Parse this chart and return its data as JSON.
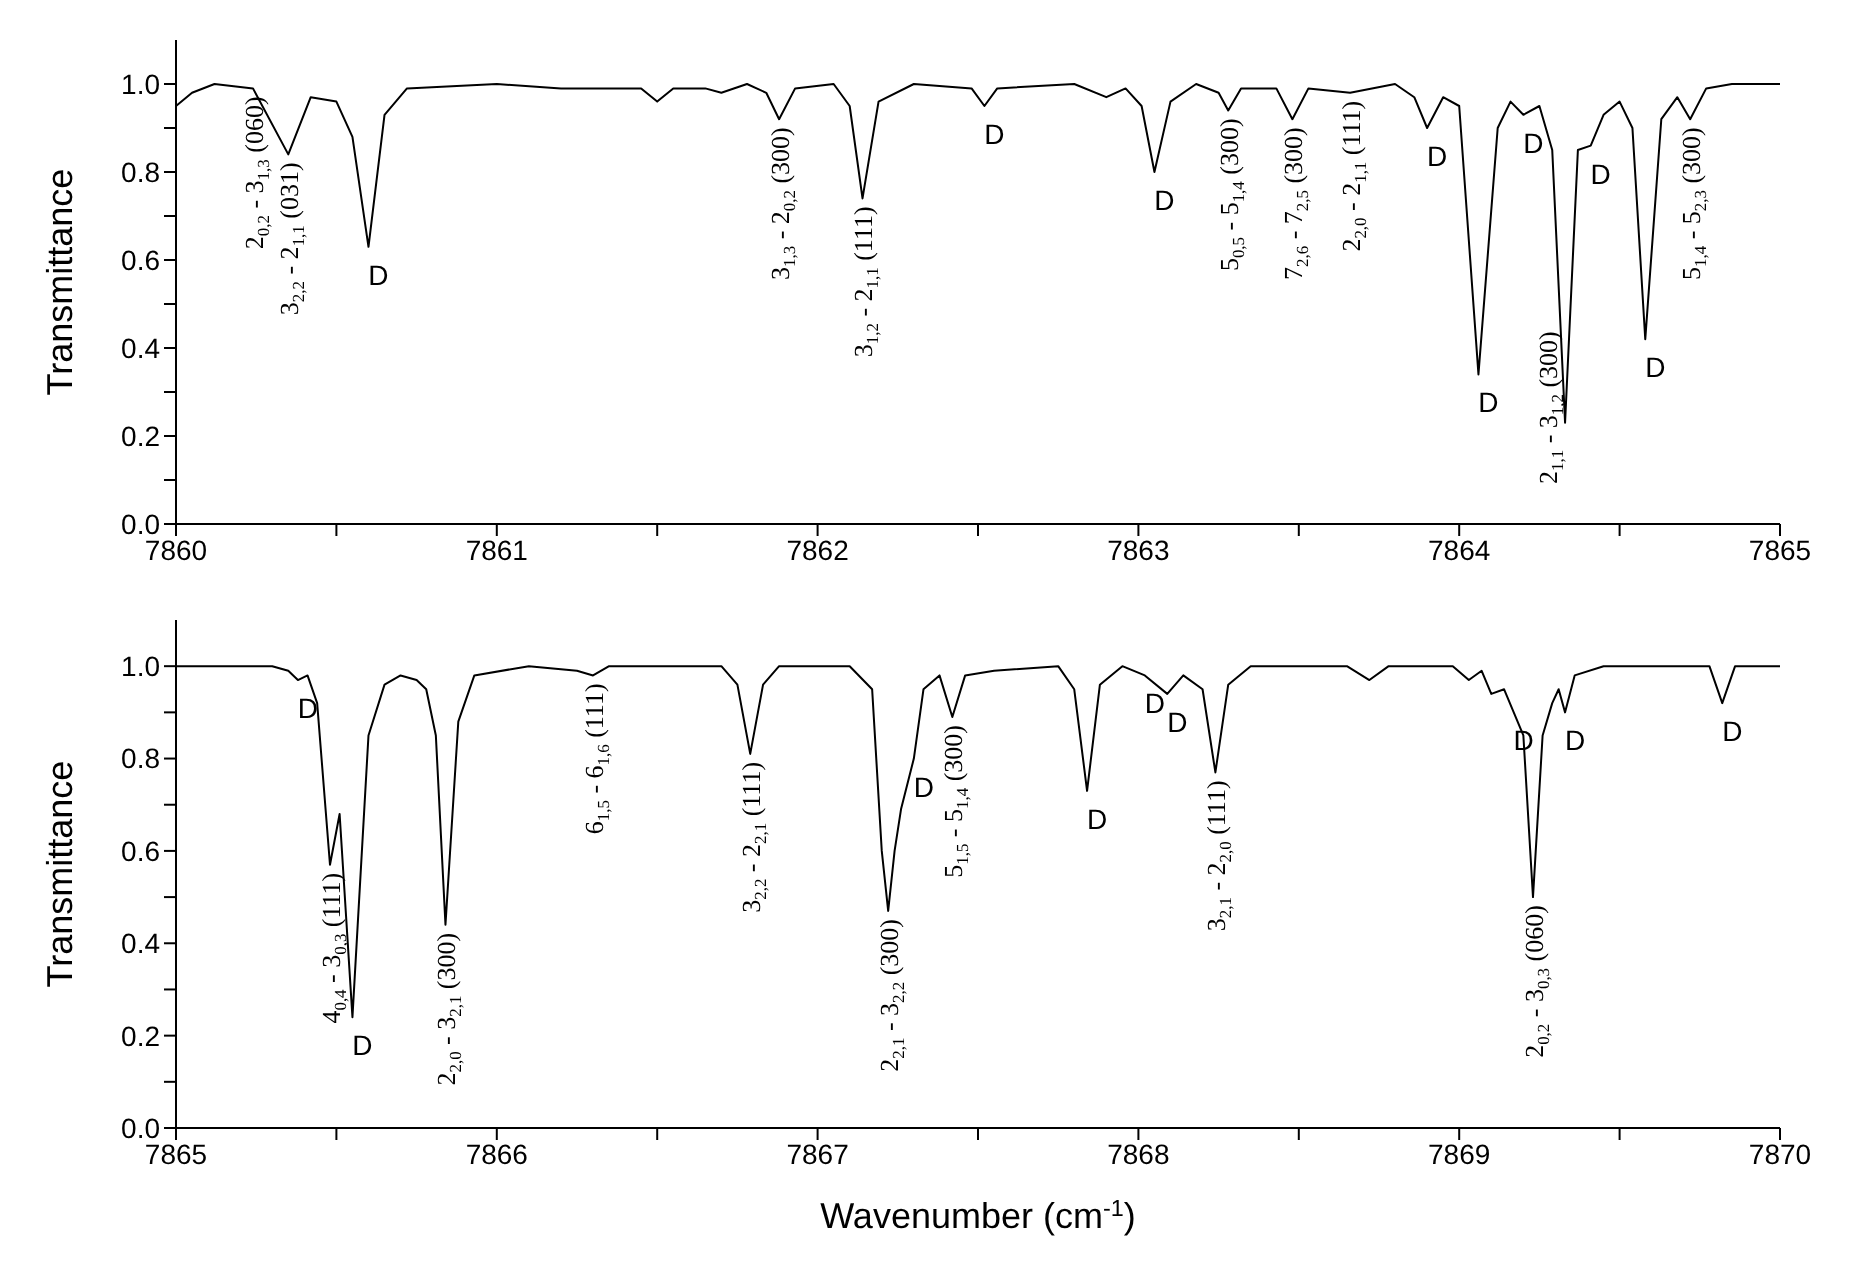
{
  "chart_data": [
    {
      "type": "line",
      "ylabel": "Transmittance",
      "xlim": [
        7860,
        7865
      ],
      "ylim": [
        0,
        1.1
      ],
      "xticks": [
        7860,
        {
          "value": 7860.5,
          "label": null
        },
        7861,
        {
          "value": 7861.5,
          "label": null
        },
        7862,
        {
          "value": 7862.5,
          "label": null
        },
        7863,
        {
          "value": 7863.5,
          "label": null
        },
        7864,
        {
          "value": 7864.5,
          "label": null
        },
        7865
      ],
      "yticks": [
        {
          "value": 0,
          "label": "0.0"
        },
        {
          "value": 0.1,
          "label": null
        },
        0.2,
        {
          "value": 0.3,
          "label": null
        },
        0.4,
        {
          "value": 0.5,
          "label": null
        },
        0.6,
        {
          "value": 0.7,
          "label": null
        },
        0.8,
        {
          "value": 0.9,
          "label": null
        },
        {
          "value": 1,
          "label": "1.0"
        }
      ],
      "marker": "none",
      "line_style": "solid",
      "series": [
        {
          "color": "#000000",
          "x": [
            7860.0,
            7860.05,
            7860.12,
            7860.24,
            7860.35,
            7860.42,
            7860.5,
            7860.55,
            7860.6,
            7860.65,
            7860.72,
            7861.0,
            7861.2,
            7861.45,
            7861.5,
            7861.55,
            7861.65,
            7861.7,
            7861.78,
            7861.84,
            7861.88,
            7861.93,
            7862.05,
            7862.1,
            7862.14,
            7862.19,
            7862.3,
            7862.48,
            7862.52,
            7862.56,
            7862.8,
            7862.9,
            7862.96,
            7863.01,
            7863.05,
            7863.1,
            7863.18,
            7863.25,
            7863.28,
            7863.32,
            7863.43,
            7863.48,
            7863.53,
            7863.66,
            7863.8,
            7863.86,
            7863.9,
            7863.95,
            7864.0,
            7864.06,
            7864.12,
            7864.16,
            7864.2,
            7864.25,
            7864.29,
            7864.33,
            7864.37,
            7864.41,
            7864.45,
            7864.5,
            7864.54,
            7864.58,
            7864.63,
            7864.68,
            7864.72,
            7864.77,
            7864.85,
            7865.0
          ],
          "values": [
            0.95,
            0.98,
            1.0,
            0.99,
            0.84,
            0.97,
            0.96,
            0.88,
            0.63,
            0.93,
            0.99,
            1.0,
            0.99,
            0.99,
            0.96,
            0.99,
            0.99,
            0.98,
            1.0,
            0.98,
            0.92,
            0.99,
            1.0,
            0.95,
            0.74,
            0.96,
            1.0,
            0.99,
            0.95,
            0.99,
            1.0,
            0.97,
            0.99,
            0.95,
            0.8,
            0.96,
            1.0,
            0.98,
            0.94,
            0.99,
            0.99,
            0.92,
            0.99,
            0.98,
            1.0,
            0.97,
            0.9,
            0.97,
            0.95,
            0.34,
            0.9,
            0.96,
            0.93,
            0.95,
            0.85,
            0.23,
            0.85,
            0.86,
            0.93,
            0.96,
            0.9,
            0.42,
            0.92,
            0.97,
            0.92,
            0.99,
            1.0,
            1.0
          ]
        }
      ],
      "annotations": [
        {
          "text": "2$_{0,2}$ - 3$_{1,3}$ (060)",
          "x": 7860.24,
          "y": 0.99
        },
        {
          "text": "3$_{2,2}$ - 2$_{1,1}$ (031)",
          "x": 7860.35,
          "y": 0.84
        },
        {
          "text": "D",
          "x": 7860.6,
          "y": 0.63
        },
        {
          "text": "3$_{1,3}$ - 2$_{0,2}$ (300)",
          "x": 7861.88,
          "y": 0.92
        },
        {
          "text": "3$_{1,2}$ - 2$_{1,1}$ (111)",
          "x": 7862.14,
          "y": 0.74
        },
        {
          "text": "D",
          "x": 7862.52,
          "y": 0.95
        },
        {
          "text": "D",
          "x": 7863.05,
          "y": 0.8
        },
        {
          "text": "5$_{0,5}$ - 5$_{1,4}$ (300)",
          "x": 7863.28,
          "y": 0.94
        },
        {
          "text": "7$_{2,6}$ - 7$_{2,5}$ (300)",
          "x": 7863.48,
          "y": 0.92
        },
        {
          "text": "2$_{2,0}$ - 2$_{1,1}$ (111)",
          "x": 7863.66,
          "y": 0.98
        },
        {
          "text": "D",
          "x": 7863.9,
          "y": 0.9
        },
        {
          "text": "D",
          "x": 7864.06,
          "y": 0.34
        },
        {
          "text": "D",
          "x": 7864.2,
          "y": 0.93
        },
        {
          "text": "2$_{1,1}$ - 3$_{1,2}$ (300)",
          "x": 7864.33,
          "y": 0.23
        },
        {
          "text": "D",
          "x": 7864.41,
          "y": 0.86
        },
        {
          "text": "D",
          "x": 7864.58,
          "y": 0.42
        },
        {
          "text": "5$_{1,4}$ - 5$_{2,3}$ (300)",
          "x": 7864.72,
          "y": 0.92
        }
      ]
    },
    {
      "type": "line",
      "xlabel": "Wavenumber (cm$^{-1}$)",
      "ylabel": "Transmittance",
      "xlim": [
        7865,
        7870
      ],
      "ylim": [
        0,
        1.1
      ],
      "xticks": [
        7865,
        {
          "value": 7865.5,
          "label": null
        },
        7866,
        {
          "value": 7866.5,
          "label": null
        },
        7867,
        {
          "value": 7867.5,
          "label": null
        },
        7868,
        {
          "value": 7868.5,
          "label": null
        },
        7869,
        {
          "value": 7869.5,
          "label": null
        },
        7870
      ],
      "yticks": [
        {
          "value": 0,
          "label": "0.0"
        },
        {
          "value": 0.1,
          "label": null
        },
        0.2,
        {
          "value": 0.3,
          "label": null
        },
        0.4,
        {
          "value": 0.5,
          "label": null
        },
        0.6,
        {
          "value": 0.7,
          "label": null
        },
        0.8,
        {
          "value": 0.9,
          "label": null
        },
        {
          "value": 1,
          "label": "1.0"
        }
      ],
      "marker": "none",
      "line_style": "solid",
      "series": [
        {
          "color": "#000000",
          "x": [
            7865.0,
            7865.3,
            7865.35,
            7865.38,
            7865.41,
            7865.44,
            7865.48,
            7865.51,
            7865.55,
            7865.6,
            7865.65,
            7865.7,
            7865.75,
            7865.78,
            7865.81,
            7865.84,
            7865.88,
            7865.93,
            7866.1,
            7866.25,
            7866.3,
            7866.35,
            7866.7,
            7866.75,
            7866.79,
            7866.83,
            7866.88,
            7867.1,
            7867.17,
            7867.2,
            7867.22,
            7867.24,
            7867.26,
            7867.3,
            7867.33,
            7867.38,
            7867.42,
            7867.46,
            7867.55,
            7867.75,
            7867.8,
            7867.84,
            7867.88,
            7867.95,
            7868.02,
            7868.09,
            7868.14,
            7868.2,
            7868.24,
            7868.28,
            7868.35,
            7868.65,
            7868.72,
            7868.78,
            7868.98,
            7869.03,
            7869.07,
            7869.1,
            7869.14,
            7869.17,
            7869.2,
            7869.23,
            7869.26,
            7869.29,
            7869.31,
            7869.33,
            7869.36,
            7869.45,
            7869.78,
            7869.82,
            7869.86,
            7870.0
          ],
          "values": [
            1.0,
            1.0,
            0.99,
            0.97,
            0.98,
            0.92,
            0.57,
            0.68,
            0.24,
            0.85,
            0.96,
            0.98,
            0.97,
            0.95,
            0.85,
            0.44,
            0.88,
            0.98,
            1.0,
            0.99,
            0.98,
            1.0,
            1.0,
            0.96,
            0.81,
            0.96,
            1.0,
            1.0,
            0.95,
            0.6,
            0.47,
            0.6,
            0.69,
            0.8,
            0.95,
            0.98,
            0.89,
            0.98,
            0.99,
            1.0,
            0.95,
            0.73,
            0.96,
            1.0,
            0.98,
            0.94,
            0.98,
            0.95,
            0.77,
            0.96,
            1.0,
            1.0,
            0.97,
            1.0,
            1.0,
            0.97,
            0.99,
            0.94,
            0.95,
            0.9,
            0.85,
            0.5,
            0.85,
            0.92,
            0.95,
            0.9,
            0.98,
            1.0,
            1.0,
            0.92,
            1.0,
            1.0
          ]
        }
      ],
      "annotations": [
        {
          "text": "D",
          "x": 7865.38,
          "y": 0.97
        },
        {
          "text": "4$_{0,4}$ - 3$_{0,3}$ (111)",
          "x": 7865.48,
          "y": 0.57
        },
        {
          "text": "D",
          "x": 7865.55,
          "y": 0.24
        },
        {
          "text": "2$_{2,0}$ - 3$_{2,1}$ (300)",
          "x": 7865.84,
          "y": 0.44
        },
        {
          "text": "6$_{1,5}$ - 6$_{1,6}$ (111)",
          "x": 7866.3,
          "y": 0.98
        },
        {
          "text": "3$_{2,2}$ - 2$_{2,1}$ (111)",
          "x": 7866.79,
          "y": 0.81
        },
        {
          "text": "2$_{2,1}$ - 3$_{2,2}$ (300)",
          "x": 7867.22,
          "y": 0.47
        },
        {
          "text": "D",
          "x": 7867.3,
          "y": 0.8
        },
        {
          "text": "5$_{1,5}$ - 5$_{1,4}$ (300)",
          "x": 7867.42,
          "y": 0.89
        },
        {
          "text": "D",
          "x": 7867.84,
          "y": 0.73
        },
        {
          "text": "D",
          "x": 7868.02,
          "y": 0.98
        },
        {
          "text": "D",
          "x": 7868.09,
          "y": 0.94
        },
        {
          "text": "3$_{2,1}$ - 2$_{2,0}$ (111)",
          "x": 7868.24,
          "y": 0.77
        },
        {
          "text": "D",
          "x": 7869.17,
          "y": 0.9
        },
        {
          "text": "D",
          "x": 7869.33,
          "y": 0.9
        },
        {
          "text": "2$_{0,2}$ - 3$_{0,3}$ (060)",
          "x": 7869.23,
          "y": 0.5
        },
        {
          "text": "D",
          "x": 7869.82,
          "y": 0.92
        }
      ]
    }
  ]
}
